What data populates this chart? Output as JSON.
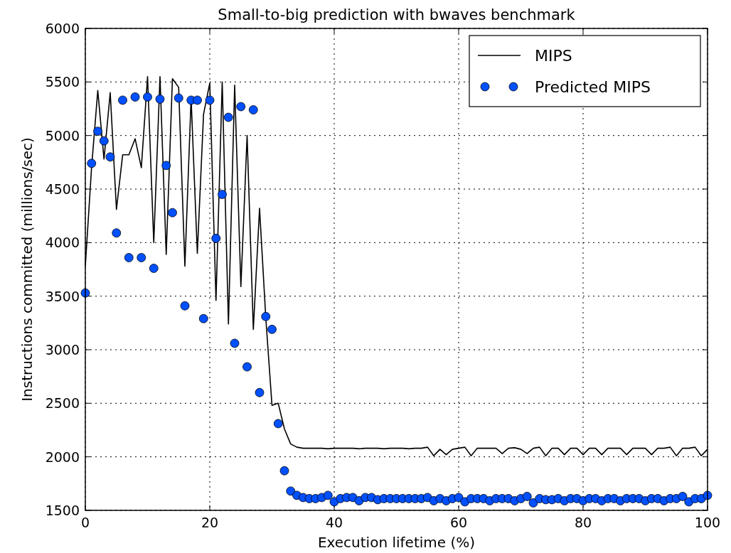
{
  "chart_data": {
    "type": "line",
    "title": "Small-to-big prediction with bwaves benchmark",
    "xlabel": "Execution lifetime (%)",
    "ylabel": "Instructions committed (millions/sec)",
    "xlim": [
      0,
      100
    ],
    "xticks": [
      0,
      20,
      40,
      60,
      80,
      100
    ],
    "ylim": [
      1500,
      6000
    ],
    "yticks": [
      1500,
      2000,
      2500,
      3000,
      3500,
      4000,
      4500,
      5000,
      5500,
      6000
    ],
    "grid": true,
    "legend": "top right",
    "x": [
      0,
      1,
      2,
      3,
      4,
      5,
      6,
      7,
      8,
      9,
      10,
      11,
      12,
      13,
      14,
      15,
      16,
      17,
      18,
      19,
      20,
      21,
      22,
      23,
      24,
      25,
      26,
      27,
      28,
      29,
      30,
      31,
      32,
      33,
      34,
      35,
      36,
      37,
      38,
      39,
      40,
      41,
      42,
      43,
      44,
      45,
      46,
      47,
      48,
      49,
      50,
      51,
      52,
      53,
      54,
      55,
      56,
      57,
      58,
      59,
      60,
      61,
      62,
      63,
      64,
      65,
      66,
      67,
      68,
      69,
      70,
      71,
      72,
      73,
      74,
      75,
      76,
      77,
      78,
      79,
      80,
      81,
      82,
      83,
      84,
      85,
      86,
      87,
      88,
      89,
      90,
      91,
      92,
      93,
      94,
      95,
      96,
      97,
      98,
      99,
      100
    ],
    "series": [
      {
        "name": "MIPS",
        "color": "#000000",
        "marker": "none",
        "values": [
          3780,
          4700,
          5420,
          4780,
          5400,
          4310,
          4820,
          4820,
          4970,
          4700,
          5550,
          4000,
          5550,
          3890,
          5530,
          5450,
          3780,
          5350,
          3900,
          5200,
          5490,
          3460,
          5500,
          3240,
          5470,
          3590,
          5000,
          3190,
          4320,
          3300,
          2480,
          2500,
          2260,
          2120,
          2090,
          2080,
          2080,
          2080,
          2080,
          2075,
          2080,
          2080,
          2080,
          2080,
          2075,
          2080,
          2080,
          2080,
          2075,
          2080,
          2080,
          2080,
          2075,
          2080,
          2080,
          2090,
          2010,
          2070,
          2020,
          2070,
          2080,
          2090,
          2010,
          2080,
          2080,
          2080,
          2080,
          2030,
          2080,
          2085,
          2070,
          2030,
          2080,
          2090,
          2010,
          2080,
          2080,
          2020,
          2080,
          2080,
          2020,
          2080,
          2080,
          2020,
          2080,
          2080,
          2080,
          2020,
          2080,
          2080,
          2080,
          2020,
          2080,
          2080,
          2090,
          2010,
          2080,
          2080,
          2090,
          2010,
          2070
        ]
      },
      {
        "name": "Predicted MIPS",
        "type": "scatter",
        "color": "#0050ff",
        "marker": "circle",
        "values": [
          3530,
          4740,
          5040,
          4950,
          4800,
          4090,
          5330,
          3860,
          5360,
          3860,
          5360,
          3760,
          5340,
          4720,
          4280,
          5350,
          3410,
          5330,
          5330,
          3290,
          5330,
          4040,
          4450,
          5170,
          3060,
          5270,
          2840,
          5240,
          2600,
          3310,
          3190,
          2310,
          1870,
          1680,
          1640,
          1620,
          1610,
          1610,
          1620,
          1640,
          1580,
          1610,
          1620,
          1620,
          1590,
          1620,
          1620,
          1600,
          1610,
          1610,
          1610,
          1610,
          1610,
          1610,
          1610,
          1620,
          1590,
          1610,
          1590,
          1610,
          1620,
          1580,
          1610,
          1610,
          1610,
          1590,
          1610,
          1610,
          1610,
          1590,
          1610,
          1630,
          1570,
          1610,
          1600,
          1600,
          1610,
          1590,
          1610,
          1610,
          1590,
          1610,
          1610,
          1590,
          1610,
          1610,
          1590,
          1610,
          1610,
          1610,
          1590,
          1610,
          1610,
          1590,
          1610,
          1610,
          1630,
          1580,
          1610,
          1610,
          1640
        ]
      }
    ]
  }
}
